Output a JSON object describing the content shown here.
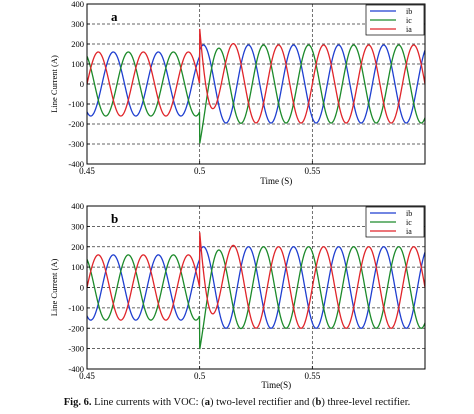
{
  "chart_data": [
    {
      "type": "line",
      "panel_label": "a",
      "ylabel": "Line Current (A)",
      "xlabel": "Time (S)",
      "xlim": [
        0.45,
        0.6
      ],
      "ylim": [
        -400,
        400
      ],
      "xticks": [
        0.45,
        0.5,
        0.55
      ],
      "xtick_labels": [
        "0.45",
        "0.5",
        "0.55"
      ],
      "yticks": [
        400,
        300,
        200,
        100,
        0,
        -100,
        -200,
        -300,
        -400
      ],
      "ytick_labels": [
        "400",
        "300",
        "200",
        "100",
        "0",
        "-100",
        "-200",
        "-300",
        "-400"
      ],
      "grid": "dashed",
      "legend_position": "top-right",
      "series": [
        {
          "name": "ib",
          "color": "#1f3fd0",
          "frequency_hz": 50,
          "phase_deg": -120,
          "amplitude_before": 160,
          "amplitude_after": 195,
          "step_time": 0.5,
          "transient_peak": 0
        },
        {
          "name": "ic",
          "color": "#1c8a2a",
          "frequency_hz": 50,
          "phase_deg": 120,
          "amplitude_before": 160,
          "amplitude_after": 195,
          "step_time": 0.5,
          "transient_peak": -300
        },
        {
          "name": "ia",
          "color": "#e0252a",
          "frequency_hz": 50,
          "phase_deg": 0,
          "amplitude_before": 160,
          "amplitude_after": 195,
          "step_time": 0.5,
          "transient_peak": 280
        }
      ]
    },
    {
      "type": "line",
      "panel_label": "b",
      "ylabel": "Line Current (A)",
      "xlabel": "Time(S)",
      "xlim": [
        0.45,
        0.6
      ],
      "ylim": [
        -400,
        400
      ],
      "xticks": [
        0.45,
        0.5,
        0.55
      ],
      "xtick_labels": [
        "0.45",
        "0.5",
        "0.55"
      ],
      "yticks": [
        400,
        300,
        200,
        100,
        0,
        -100,
        -200,
        -300,
        -400
      ],
      "ytick_labels": [
        "400",
        "300",
        "200",
        "100",
        "0",
        "-100",
        "-200",
        "-300",
        "-400"
      ],
      "grid": "dashed",
      "legend_position": "top-right",
      "series": [
        {
          "name": "ib",
          "color": "#1f3fd0",
          "frequency_hz": 50,
          "phase_deg": -120,
          "amplitude_before": 160,
          "amplitude_after": 200,
          "step_time": 0.5,
          "transient_peak": 0
        },
        {
          "name": "ic",
          "color": "#1c8a2a",
          "frequency_hz": 50,
          "phase_deg": 120,
          "amplitude_before": 160,
          "amplitude_after": 200,
          "step_time": 0.5,
          "transient_peak": -305
        },
        {
          "name": "ia",
          "color": "#e0252a",
          "frequency_hz": 50,
          "phase_deg": 0,
          "amplitude_before": 160,
          "amplitude_after": 200,
          "step_time": 0.5,
          "transient_peak": 275
        }
      ]
    }
  ],
  "caption": {
    "prefix": "Fig. 6.",
    "text_1": "Line currents with VOC: (",
    "bold_a": "a",
    "text_2": ") two-level rectifier and (",
    "bold_b": "b",
    "text_3": ") three-level rectifier."
  }
}
